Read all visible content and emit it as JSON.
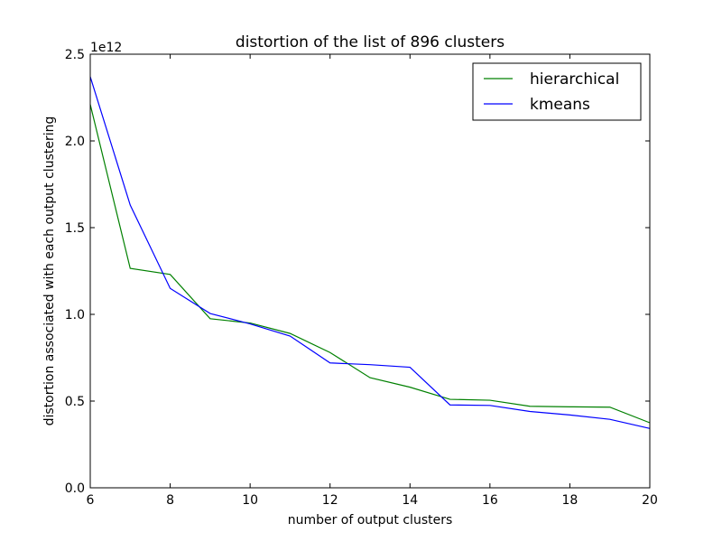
{
  "chart_data": {
    "type": "line",
    "title": "distortion of the list of 896 clusters",
    "xlabel": "number of output clusters",
    "ylabel": "distortion associated with each output clustering",
    "offset_text": "1e12",
    "x": [
      6,
      7,
      8,
      9,
      10,
      11,
      12,
      13,
      14,
      15,
      16,
      17,
      18,
      19,
      20
    ],
    "xlim": [
      6,
      20
    ],
    "ylim": [
      0,
      2.5
    ],
    "xticks": [
      6,
      8,
      10,
      12,
      14,
      16,
      18,
      20
    ],
    "yticks": [
      0.0,
      0.5,
      1.0,
      1.5,
      2.0,
      2.5
    ],
    "xtick_labels": [
      "6",
      "8",
      "10",
      "12",
      "14",
      "16",
      "18",
      "20"
    ],
    "ytick_labels": [
      "0.0",
      "0.5",
      "1.0",
      "1.5",
      "2.0",
      "2.5"
    ],
    "grid": false,
    "legend_position": "top-right",
    "series": [
      {
        "name": "hierarchical",
        "color": "#008000",
        "values": [
          2.21,
          1.265,
          1.23,
          0.975,
          0.95,
          0.89,
          0.78,
          0.635,
          0.58,
          0.51,
          0.505,
          0.47,
          0.467,
          0.465,
          0.375
        ]
      },
      {
        "name": "kmeans",
        "color": "#0000ff",
        "values": [
          2.37,
          1.63,
          1.15,
          1.005,
          0.945,
          0.875,
          0.72,
          0.71,
          0.695,
          0.478,
          0.475,
          0.44,
          0.42,
          0.395,
          0.342
        ]
      }
    ]
  }
}
